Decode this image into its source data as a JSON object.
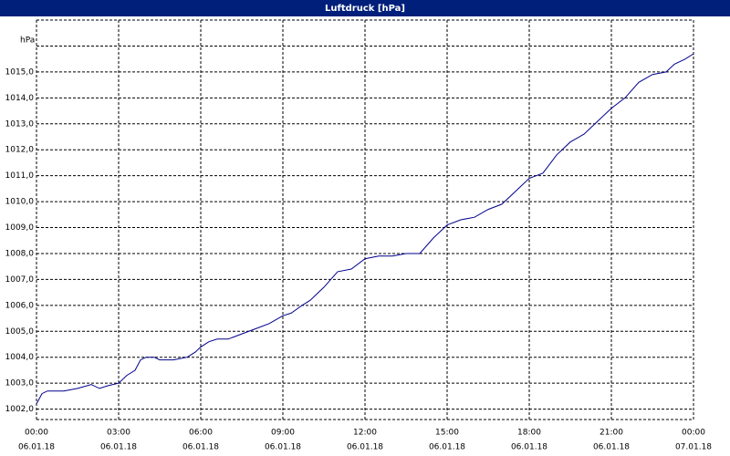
{
  "chart_data": {
    "type": "line",
    "title": "Luftdruck [hPa]",
    "y_unit": "hPa",
    "x": [
      0,
      0.2,
      0.4,
      1,
      1.5,
      2,
      2.3,
      2.6,
      3,
      3.3,
      3.6,
      3.8,
      4,
      4.3,
      4.5,
      5,
      5.5,
      5.8,
      6,
      6.3,
      6.6,
      7,
      7.5,
      8,
      8.5,
      9,
      9.3,
      9.7,
      10,
      10.5,
      11,
      11.5,
      12,
      12.5,
      13,
      13.5,
      14,
      14.5,
      15,
      15.5,
      16,
      16.5,
      17,
      17.5,
      18,
      18.5,
      19,
      19.5,
      20,
      20.5,
      21,
      21.5,
      22,
      22.5,
      23,
      23.3,
      23.7,
      24
    ],
    "series": [
      {
        "name": "Luftdruck",
        "color": "#00008b",
        "values": [
          1002.2,
          1002.6,
          1002.7,
          1002.7,
          1002.8,
          1002.95,
          1002.8,
          1002.9,
          1003.0,
          1003.3,
          1003.5,
          1003.9,
          1004.0,
          1004.0,
          1003.9,
          1003.9,
          1004.0,
          1004.2,
          1004.4,
          1004.6,
          1004.7,
          1004.7,
          1004.9,
          1005.1,
          1005.3,
          1005.6,
          1005.7,
          1006.0,
          1006.2,
          1006.7,
          1007.3,
          1007.4,
          1007.8,
          1007.9,
          1007.9,
          1008.0,
          1008.0,
          1008.6,
          1009.1,
          1009.3,
          1009.4,
          1009.7,
          1009.9,
          1010.4,
          1010.9,
          1011.1,
          1011.8,
          1012.3,
          1012.6,
          1013.1,
          1013.6,
          1014.0,
          1014.6,
          1014.9,
          1015.0,
          1015.3,
          1015.5,
          1015.7
        ]
      }
    ],
    "xlim": [
      0,
      24
    ],
    "xticks": [
      {
        "value": 0,
        "label": "00:00"
      },
      {
        "value": 3,
        "label": "03:00"
      },
      {
        "value": 6,
        "label": "06:00"
      },
      {
        "value": 9,
        "label": "09:00"
      },
      {
        "value": 12,
        "label": "12:00"
      },
      {
        "value": 15,
        "label": "15:00"
      },
      {
        "value": 18,
        "label": "18:00"
      },
      {
        "value": 21,
        "label": "21:00"
      },
      {
        "value": 24,
        "label": "00:00"
      }
    ],
    "xtick_dates": [
      "06.01.18",
      "06.01.18",
      "06.01.18",
      "06.01.18",
      "06.01.18",
      "06.01.18",
      "06.01.18",
      "06.01.18",
      "07.01.18"
    ],
    "ylim": [
      1001.6,
      1017.0
    ],
    "yticks": [
      {
        "value": 1002,
        "label": "1002,0"
      },
      {
        "value": 1003,
        "label": "1003,0"
      },
      {
        "value": 1004,
        "label": "1004,0"
      },
      {
        "value": 1005,
        "label": "1005,0"
      },
      {
        "value": 1006,
        "label": "1006,0"
      },
      {
        "value": 1007,
        "label": "1007,0"
      },
      {
        "value": 1008,
        "label": "1008,0"
      },
      {
        "value": 1009,
        "label": "1009,0"
      },
      {
        "value": 1010,
        "label": "1010,0"
      },
      {
        "value": 1011,
        "label": "1011,0"
      },
      {
        "value": 1012,
        "label": "1012,0"
      },
      {
        "value": 1013,
        "label": "1013,0"
      },
      {
        "value": 1014,
        "label": "1014,0"
      },
      {
        "value": 1015,
        "label": "1015,0"
      }
    ],
    "ygrid_extra": [
      1016
    ],
    "grid": true
  }
}
